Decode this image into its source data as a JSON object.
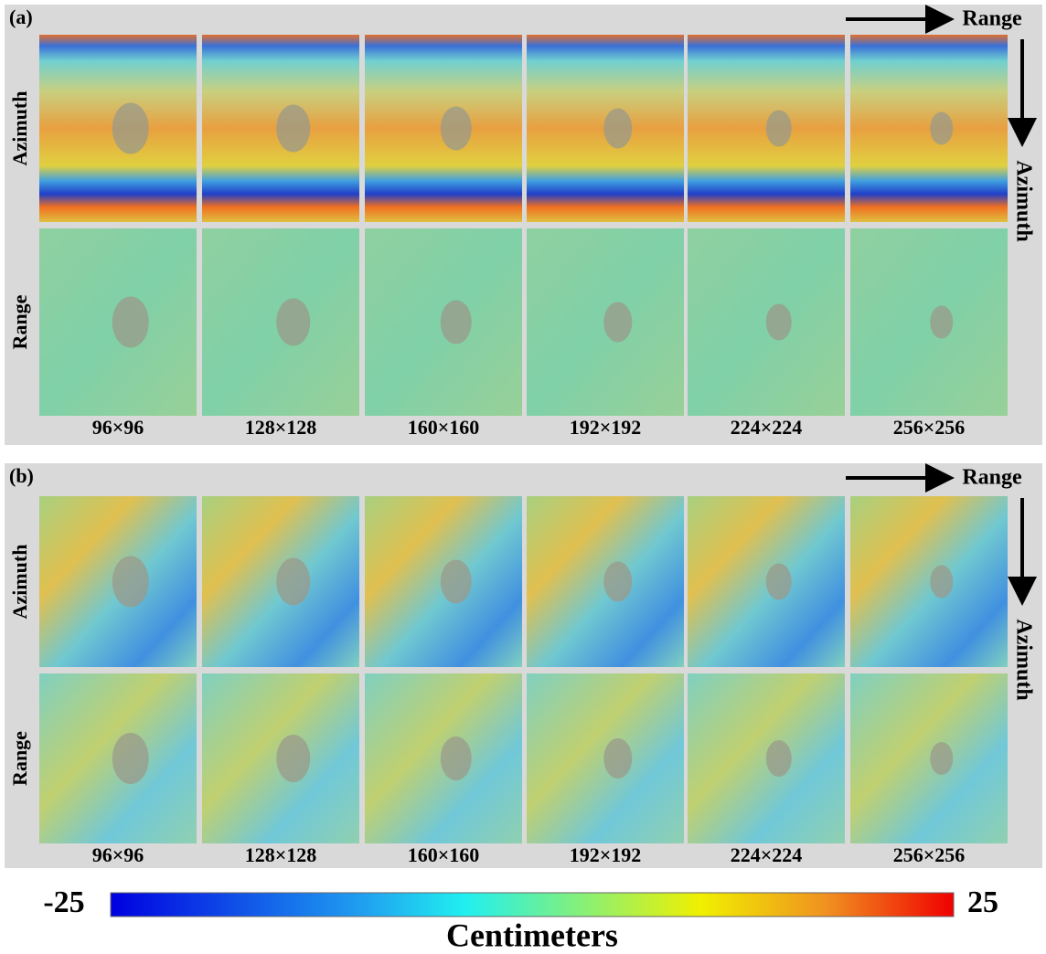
{
  "panels": [
    {
      "label": "(a)",
      "range_arrow": "Range",
      "azimuth_arrow": "Azimuth",
      "row_labels": [
        "Azimuth",
        "Range"
      ],
      "column_labels": [
        "96×96",
        "128×128",
        "160×160",
        "192×192",
        "224×224",
        "256×256"
      ]
    },
    {
      "label": "(b)",
      "range_arrow": "Range",
      "azimuth_arrow": "Azimuth",
      "row_labels": [
        "Azimuth",
        "Range"
      ],
      "column_labels": [
        "96×96",
        "128×128",
        "160×160",
        "192×192",
        "224×224",
        "256×256"
      ]
    }
  ],
  "colorbar": {
    "min": -25,
    "max": 25,
    "label": "Centimeters"
  }
}
